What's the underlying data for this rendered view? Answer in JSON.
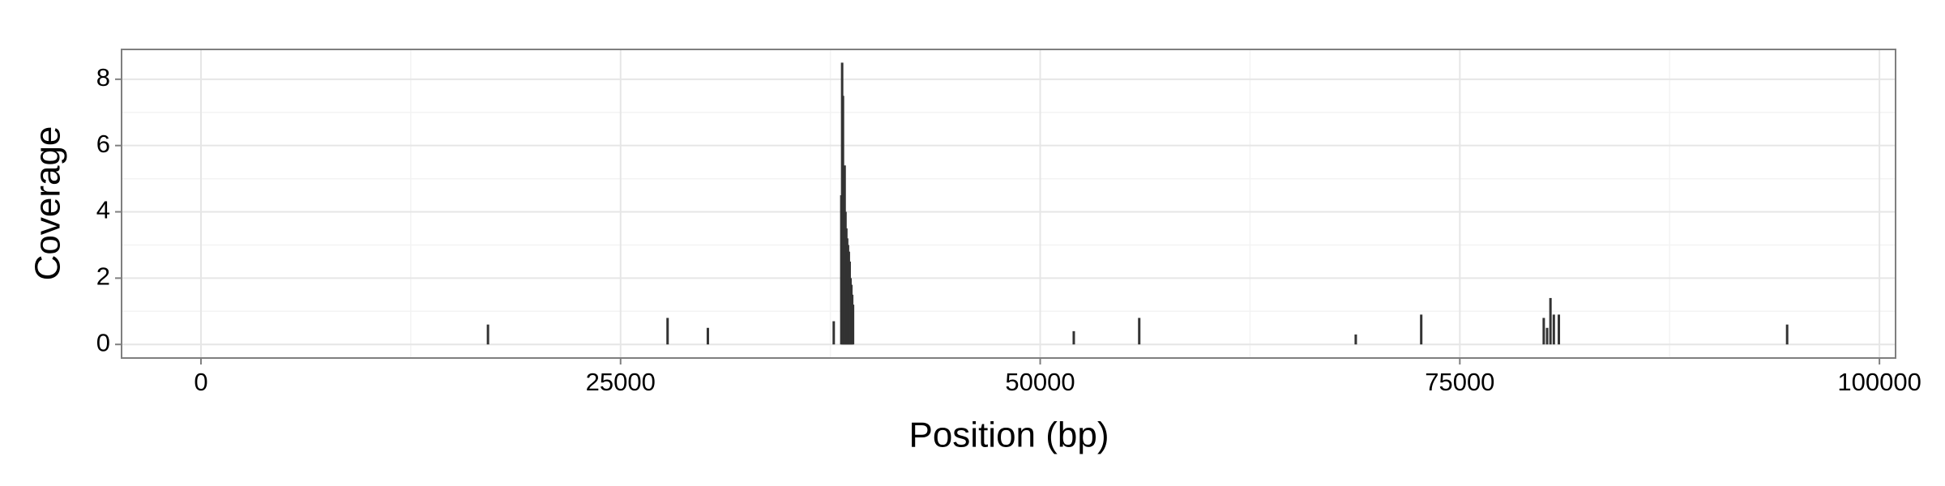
{
  "chart_data": {
    "type": "bar",
    "xlabel": "Position (bp)",
    "ylabel": "Coverage",
    "x": [
      17100,
      27800,
      30200,
      37700,
      38150,
      38200,
      38250,
      38300,
      38350,
      38400,
      38450,
      38500,
      38550,
      38600,
      38650,
      38700,
      38750,
      38800,
      38850,
      52000,
      55900,
      68800,
      72700,
      80000,
      80200,
      80400,
      80600,
      80900,
      94500
    ],
    "values": [
      0.6,
      0.8,
      0.5,
      0.7,
      4.5,
      8.5,
      7.5,
      5.2,
      5.4,
      4.0,
      3.5,
      3.2,
      3.0,
      2.8,
      2.5,
      2.0,
      1.8,
      1.5,
      1.2,
      0.4,
      0.8,
      0.3,
      0.9,
      0.8,
      0.5,
      1.4,
      0.9,
      0.9,
      0.6
    ],
    "color": "#333333",
    "xlim": [
      -4730,
      100960
    ],
    "ylim": [
      -0.41,
      8.9
    ],
    "xticks": [
      0,
      25000,
      50000,
      75000,
      100000
    ],
    "yticks": [
      0,
      2,
      4,
      6,
      8
    ],
    "xminor": [
      12500,
      37500,
      62500,
      87500
    ],
    "yminor": [
      1,
      3,
      5,
      7
    ],
    "grid": true
  }
}
